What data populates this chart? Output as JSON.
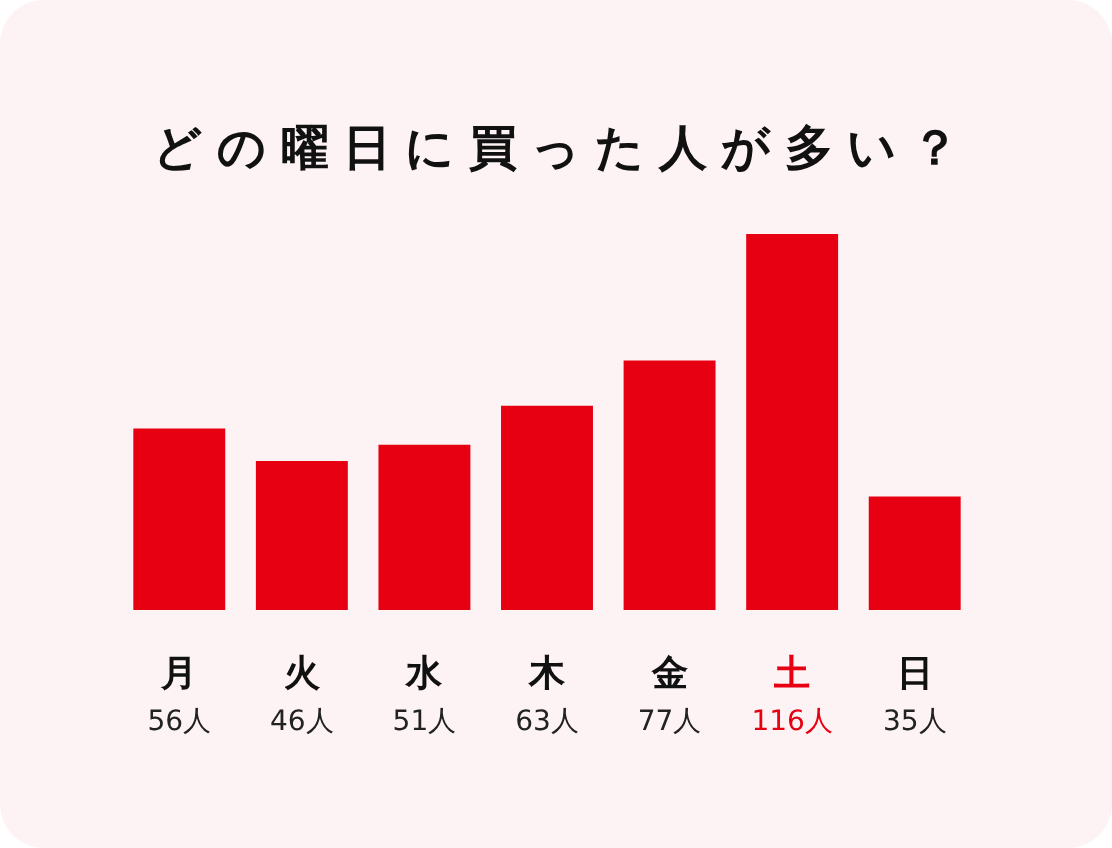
{
  "chart_data": {
    "type": "bar",
    "title": "どの曜日に買った人が多い？",
    "categories": [
      "月",
      "火",
      "水",
      "木",
      "金",
      "土",
      "日"
    ],
    "values": [
      56,
      46,
      51,
      63,
      77,
      116,
      35
    ],
    "value_labels": [
      "56人",
      "46人",
      "51人",
      "63人",
      "77人",
      "116人",
      "35人"
    ],
    "color": "#e60012"
  }
}
